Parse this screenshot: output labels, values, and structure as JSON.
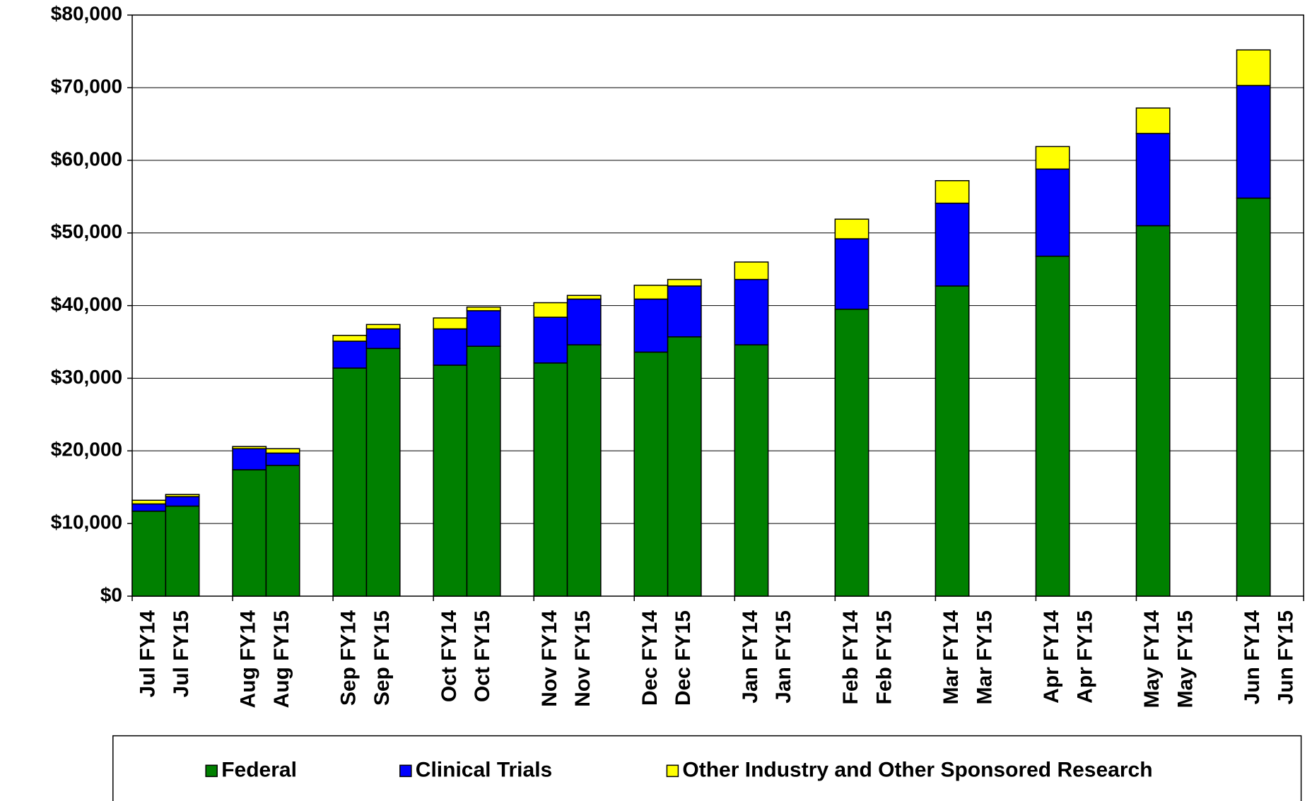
{
  "chart_data": {
    "type": "stacked_bar",
    "categories": [
      "Jul FY14",
      "Jul FY15",
      "Aug FY14",
      "Aug FY15",
      "Sep FY14",
      "Sep FY15",
      "Oct FY14",
      "Oct FY15",
      "Nov FY14",
      "Nov FY15",
      "Dec FY14",
      "Dec FY15",
      "Jan FY14",
      "Jan FY15",
      "Feb FY14",
      "Feb FY15",
      "Mar FY14",
      "Mar FY15",
      "Apr FY14",
      "Apr FY15",
      "May FY14",
      "May FY15",
      "Jun FY14",
      "Jun FY15"
    ],
    "series": [
      {
        "name": "Federal",
        "color": "#008000",
        "values": [
          11700,
          12400,
          17400,
          18000,
          31400,
          34100,
          31800,
          34400,
          32100,
          34600,
          33600,
          35700,
          34600,
          null,
          39500,
          null,
          42700,
          null,
          46800,
          null,
          51000,
          null,
          54800,
          null
        ]
      },
      {
        "name": "Clinical Trials",
        "color": "#0000ff",
        "values": [
          1000,
          1300,
          2900,
          1700,
          3700,
          2700,
          5000,
          4900,
          6300,
          6300,
          7300,
          7000,
          9000,
          null,
          9700,
          null,
          11400,
          null,
          12000,
          null,
          12700,
          null,
          15500,
          null
        ]
      },
      {
        "name": "Other Industry and Other Sponsored Research",
        "color": "#ffff00",
        "values": [
          500,
          300,
          300,
          600,
          800,
          600,
          1500,
          500,
          2000,
          500,
          1900,
          900,
          2400,
          null,
          2700,
          null,
          3100,
          null,
          3100,
          null,
          3500,
          null,
          4900,
          null
        ]
      }
    ],
    "ylim": [
      0,
      80000
    ],
    "yticks": [
      {
        "value": 0,
        "label": "$0"
      },
      {
        "value": 10000,
        "label": "$10,000"
      },
      {
        "value": 20000,
        "label": "$20,000"
      },
      {
        "value": 30000,
        "label": "$30,000"
      },
      {
        "value": 40000,
        "label": "$40,000"
      },
      {
        "value": 50000,
        "label": "$50,000"
      },
      {
        "value": 60000,
        "label": "$60,000"
      },
      {
        "value": 70000,
        "label": "$70,000"
      },
      {
        "value": 80000,
        "label": "$80,000"
      }
    ],
    "grid": true
  }
}
